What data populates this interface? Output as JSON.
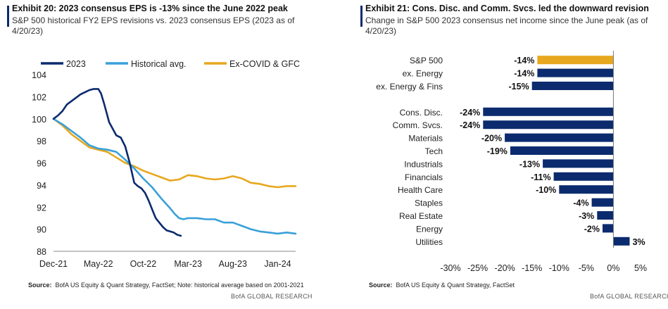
{
  "exhibits": [
    {
      "title": "Exhibit 20: 2023  consensus EPS is -13% since the June 2022 peak",
      "subtitle": "S&P 500 historical FY2 EPS revisions vs. 2023 consensus EPS (2023 as of 4/20/23)",
      "source_label": "Source:",
      "source_text": "BofA US Equity & Quant Strategy, FactSet; Note: historical average based on 2001-2021",
      "brand": "BofA GLOBAL RESEARCH"
    },
    {
      "title": "Exhibit 21: Cons. Disc. and Comm. Svcs. led the downward revision",
      "subtitle": "Change in S&P 500 2023 consensus net income since the June peak (as of 4/20/23)",
      "source_label": "Source:",
      "source_text": "BofA US Equity & Quant Strategy, FactSet",
      "brand": "BofA GLOBAL RESEARCH"
    }
  ],
  "chart_data": [
    {
      "type": "line",
      "title": "Exhibit 20: 2023  consensus EPS is -13% since the June 2022 peak",
      "xlabel": "",
      "ylabel": "",
      "ylim": [
        88,
        104
      ],
      "yticks": [
        88,
        90,
        92,
        94,
        96,
        98,
        100,
        102,
        104
      ],
      "xlim": [
        0,
        27
      ],
      "xtick_positions": [
        0,
        5,
        10,
        15,
        20,
        25
      ],
      "xtick_labels": [
        "Dec-21",
        "May-22",
        "Oct-22",
        "Mar-23",
        "Aug-23",
        "Jan-24"
      ],
      "legend_position": "top",
      "series": [
        {
          "name": "2023",
          "color": "#0b2b6e",
          "x": [
            0,
            0.5,
            1,
            1.5,
            2,
            2.5,
            3,
            3.5,
            4,
            4.5,
            5,
            5.3,
            5.6,
            5.9,
            6.2,
            6.6,
            7.0,
            7.5,
            8.0,
            8.5,
            9.0,
            9.4,
            9.8,
            10.2,
            10.6,
            11.0,
            11.4,
            11.8,
            12.2,
            12.6,
            13.0,
            13.4,
            13.8,
            14.2
          ],
          "y": [
            100.0,
            100.3,
            100.7,
            101.3,
            101.6,
            101.9,
            102.2,
            102.4,
            102.6,
            102.7,
            102.7,
            102.3,
            101.5,
            100.6,
            99.7,
            99.1,
            98.5,
            98.3,
            97.5,
            96.0,
            94.2,
            93.9,
            93.7,
            93.3,
            92.6,
            91.8,
            91.0,
            90.6,
            90.2,
            89.9,
            89.8,
            89.7,
            89.5,
            89.4
          ]
        },
        {
          "name": "Historical avg.",
          "color": "#3aa0d8",
          "x": [
            0,
            1,
            2,
            3,
            4,
            5,
            6,
            7,
            8,
            9,
            10,
            11,
            12,
            13,
            13.5,
            14,
            14.5,
            15,
            16,
            17,
            18,
            19,
            20,
            21,
            22,
            23,
            24,
            25,
            26,
            27
          ],
          "y": [
            100.0,
            99.5,
            98.9,
            98.3,
            97.6,
            97.3,
            97.2,
            97.0,
            96.3,
            95.5,
            94.6,
            93.8,
            92.8,
            91.9,
            91.4,
            91.0,
            90.9,
            91.0,
            91.0,
            90.9,
            90.9,
            90.6,
            90.6,
            90.3,
            90.0,
            89.8,
            89.7,
            89.6,
            89.7,
            89.6
          ]
        },
        {
          "name": "Ex-COVID & GFC",
          "color": "#e7a81e",
          "x": [
            0,
            1,
            2,
            3,
            4,
            5,
            6,
            7,
            8,
            9,
            10,
            11,
            12,
            13,
            14,
            15,
            16,
            17,
            18,
            19,
            20,
            21,
            22,
            23,
            24,
            25,
            26,
            27
          ],
          "y": [
            100.0,
            99.4,
            98.6,
            98.0,
            97.4,
            97.2,
            97.0,
            96.5,
            96.0,
            95.7,
            95.3,
            95.0,
            94.7,
            94.4,
            94.5,
            94.9,
            94.8,
            94.6,
            94.5,
            94.6,
            94.8,
            94.6,
            94.2,
            94.1,
            93.9,
            93.8,
            93.9,
            93.9
          ]
        }
      ]
    },
    {
      "type": "bar",
      "orientation": "horizontal",
      "title": "Exhibit 21: Cons. Disc. and Comm. Svcs. led the downward revision",
      "xlabel": "",
      "ylabel": "",
      "xlim": [
        -30,
        5
      ],
      "xticks": [
        -30,
        -25,
        -20,
        -15,
        -10,
        -5,
        0,
        5
      ],
      "xtick_labels": [
        "-30%",
        "-25%",
        "-20%",
        "-15%",
        "-10%",
        "-5%",
        "0%",
        "5%"
      ],
      "categories": [
        "S&P 500",
        "ex. Energy",
        "ex. Energy & Fins",
        "",
        "Cons. Disc.",
        "Comm. Svcs.",
        "Materials",
        "Tech",
        "Industrials",
        "Financials",
        "Health Care",
        "Staples",
        "Real Estate",
        "Energy",
        "Utilities"
      ],
      "values": [
        -14,
        -14,
        -15,
        null,
        -24,
        -24,
        -20,
        -19,
        -13,
        -11,
        -10,
        -4,
        -3,
        -2,
        3
      ],
      "data_labels": [
        "-14%",
        "-14%",
        "-15%",
        "",
        "-24%",
        "-24%",
        "-20%",
        "-19%",
        "-13%",
        "-11%",
        "-10%",
        "-4%",
        "-3%",
        "-2%",
        "3%"
      ],
      "bar_colors": [
        "#e7a81e",
        "#0b2b6e",
        "#0b2b6e",
        "",
        "#0b2b6e",
        "#0b2b6e",
        "#0b2b6e",
        "#0b2b6e",
        "#0b2b6e",
        "#0b2b6e",
        "#0b2b6e",
        "#0b2b6e",
        "#0b2b6e",
        "#0b2b6e",
        "#0b2b6e"
      ]
    }
  ]
}
